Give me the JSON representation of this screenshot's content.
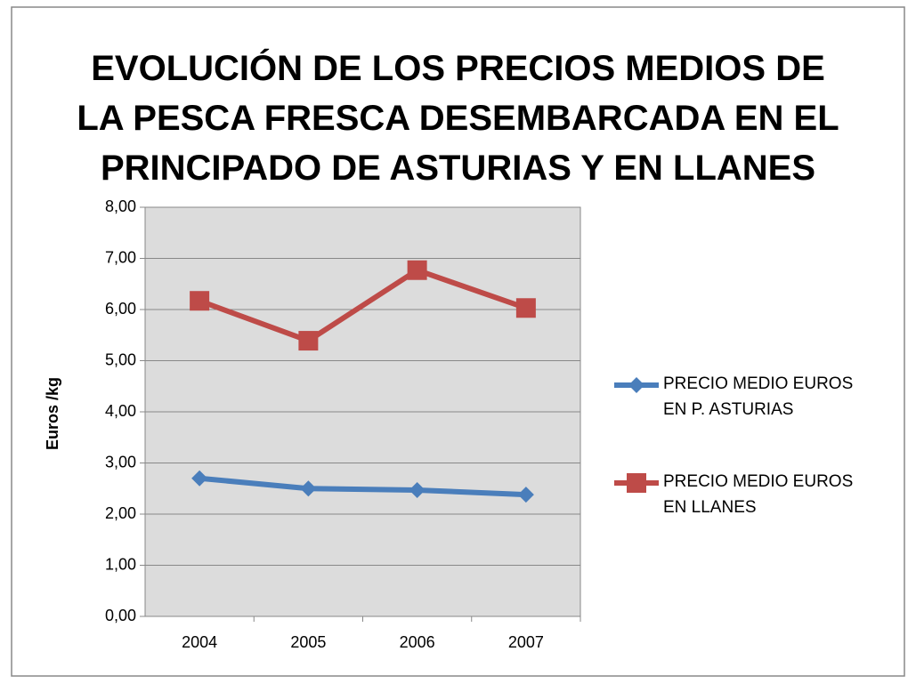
{
  "chart_data": {
    "type": "line",
    "title": [
      "EVOLUCIÓN DE LOS PRECIOS MEDIOS DE",
      "LA PESCA FRESCA DESEMBARCADA EN EL",
      "PRINCIPADO DE ASTURIAS Y EN LLANES"
    ],
    "y_label": "Euros /kg",
    "categories": [
      "2004",
      "2005",
      "2006",
      "2007"
    ],
    "series": [
      {
        "name": "PRECIO MEDIO EUROS EN P. ASTURIAS",
        "color": "#4a7ebb",
        "marker": "diamond",
        "values": [
          2.7,
          2.5,
          2.47,
          2.38
        ]
      },
      {
        "name": "PRECIO MEDIO EUROS EN LLANES",
        "color": "#be4b48",
        "marker": "square",
        "values": [
          6.17,
          5.39,
          6.77,
          6.03
        ]
      }
    ],
    "ylim": [
      0,
      8
    ],
    "yticks": [
      {
        "value": 0,
        "label": "0,00"
      },
      {
        "value": 1,
        "label": "1,00"
      },
      {
        "value": 2,
        "label": "2,00"
      },
      {
        "value": 3,
        "label": "3,00"
      },
      {
        "value": 4,
        "label": "4,00"
      },
      {
        "value": 5,
        "label": "5,00"
      },
      {
        "value": 6,
        "label": "6,00"
      },
      {
        "value": 7,
        "label": "7,00"
      },
      {
        "value": 8,
        "label": "8,00"
      }
    ],
    "grid": true,
    "legend": "right"
  }
}
